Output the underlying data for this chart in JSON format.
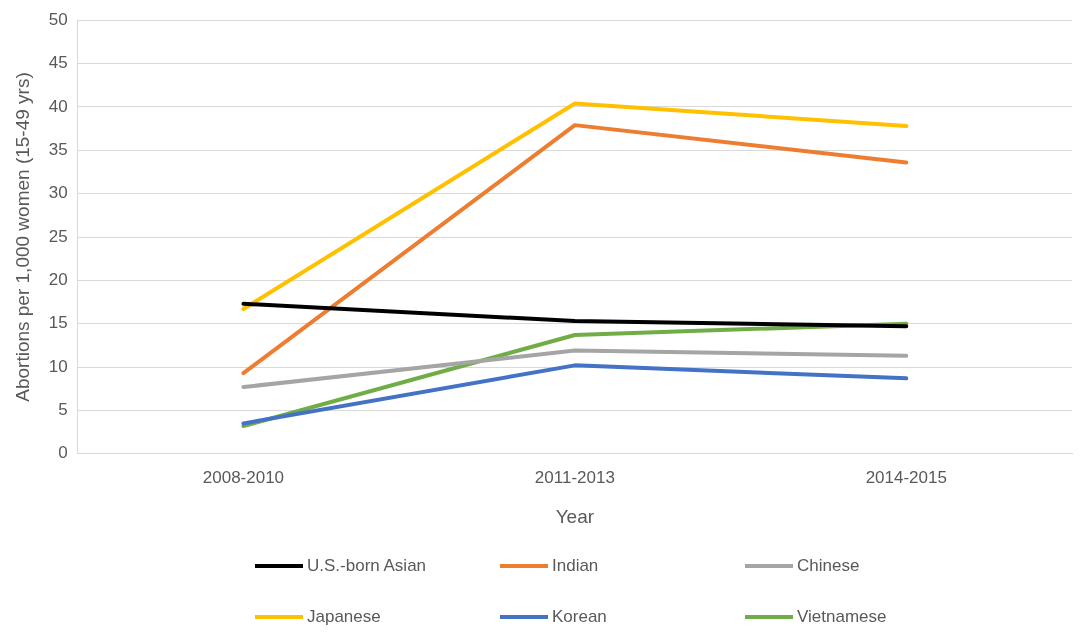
{
  "chart_data": {
    "type": "line",
    "xlabel": "Year",
    "ylabel": "Abortions per 1,000 women (15-49 yrs)",
    "categories": [
      "2008-2010",
      "2011-2013",
      "2014-2015"
    ],
    "series": [
      {
        "name": "U.S.-born Asian",
        "color": "#000000",
        "values": [
          17.3,
          15.3,
          14.7
        ]
      },
      {
        "name": "Indian",
        "color": "#ed7d31",
        "values": [
          9.3,
          37.9,
          33.6
        ]
      },
      {
        "name": "Chinese",
        "color": "#a5a5a5",
        "values": [
          7.7,
          11.9,
          11.3
        ]
      },
      {
        "name": "Japanese",
        "color": "#ffc000",
        "values": [
          16.7,
          40.4,
          37.8
        ]
      },
      {
        "name": "Korean",
        "color": "#4472c4",
        "values": [
          3.5,
          10.2,
          8.7
        ]
      },
      {
        "name": "Vietnamese",
        "color": "#70ad47",
        "values": [
          3.2,
          13.7,
          15.0
        ]
      }
    ],
    "ylim": [
      0,
      50
    ],
    "yticks": [
      0,
      5,
      10,
      15,
      20,
      25,
      30,
      35,
      40,
      45,
      50
    ],
    "grid": "y",
    "legend": "bottom",
    "marker": "none",
    "line_style": "solid"
  }
}
